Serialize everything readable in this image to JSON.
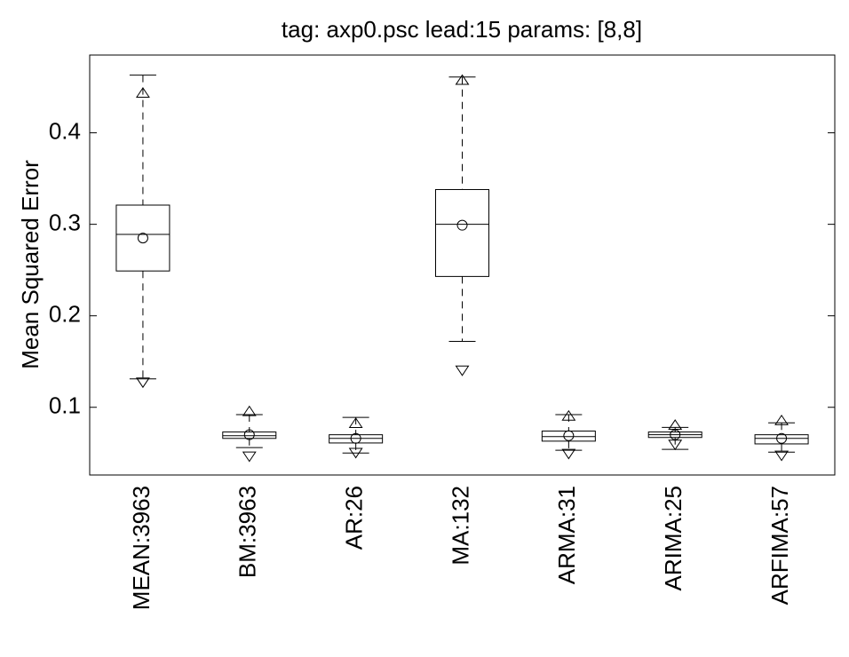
{
  "chart_data": {
    "type": "box",
    "title": "tag: axp0.psc lead:15 params: [8,8]",
    "y_label": "Mean Squared Error",
    "categories": [
      "MEAN:3963",
      "BM:3963",
      "AR:26",
      "MA:132",
      "ARMA:31",
      "ARIMA:25",
      "ARFIMA:57"
    ],
    "boxes": [
      {
        "whisker_low": 0.131,
        "q1": 0.249,
        "median": 0.289,
        "q3": 0.321,
        "whisker_high": 0.463,
        "mean": 0.285,
        "upper_marker": 0.443,
        "lower_marker": 0.128
      },
      {
        "whisker_low": 0.056,
        "q1": 0.066,
        "median": 0.069,
        "q3": 0.073,
        "whisker_high": 0.092,
        "mean": 0.07,
        "upper_marker": 0.095,
        "lower_marker": 0.047
      },
      {
        "whisker_low": 0.05,
        "q1": 0.061,
        "median": 0.066,
        "q3": 0.07,
        "whisker_high": 0.089,
        "mean": 0.066,
        "upper_marker": 0.082,
        "lower_marker": 0.051
      },
      {
        "whisker_low": 0.172,
        "q1": 0.243,
        "median": 0.3,
        "q3": 0.338,
        "whisker_high": 0.461,
        "mean": 0.299,
        "upper_marker": 0.457,
        "lower_marker": 0.141
      },
      {
        "whisker_low": 0.053,
        "q1": 0.063,
        "median": 0.068,
        "q3": 0.074,
        "whisker_high": 0.092,
        "mean": 0.069,
        "upper_marker": 0.09,
        "lower_marker": 0.05
      },
      {
        "whisker_low": 0.054,
        "q1": 0.067,
        "median": 0.07,
        "q3": 0.073,
        "whisker_high": 0.078,
        "mean": 0.07,
        "upper_marker": 0.08,
        "lower_marker": 0.06
      },
      {
        "whisker_low": 0.051,
        "q1": 0.06,
        "median": 0.066,
        "q3": 0.07,
        "whisker_high": 0.083,
        "mean": 0.066,
        "upper_marker": 0.085,
        "lower_marker": 0.048
      }
    ],
    "color": "#000000",
    "ylim": [
      0.026,
      0.485
    ],
    "yticks": [
      0.1,
      0.2,
      0.3,
      0.4
    ],
    "grid": false
  }
}
